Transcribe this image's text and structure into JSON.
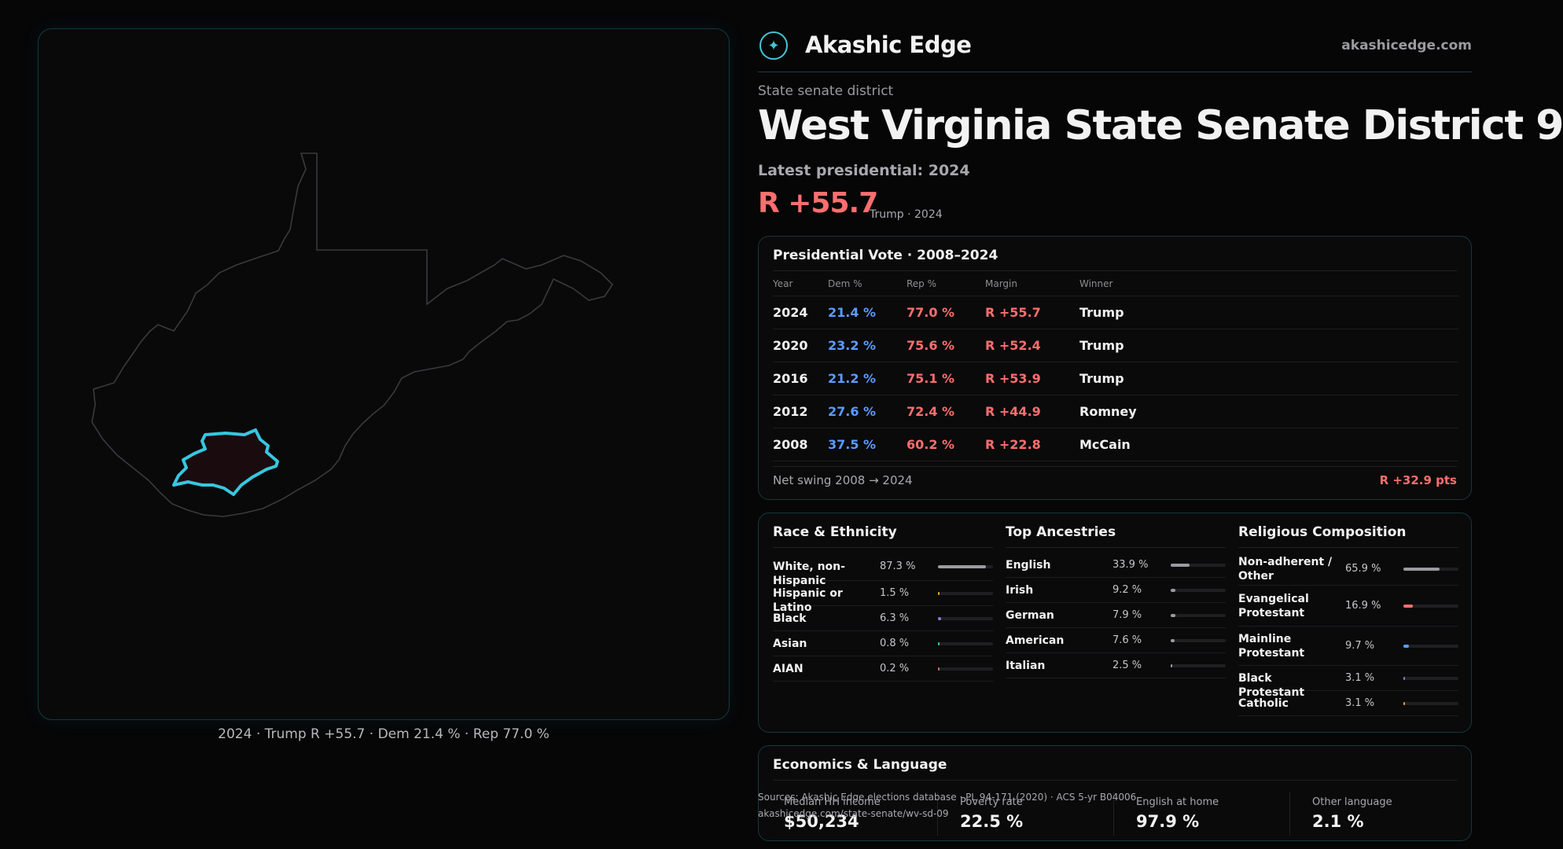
{
  "brand": {
    "name": "Akashic Edge",
    "url": "akashicedge.com"
  },
  "district": {
    "kind": "State senate district",
    "title": "West Virginia State Senate District 9",
    "latest_label": "Latest presidential: 2024",
    "latest_margin": "R +55.7",
    "latest_sub": "Trump · 2024"
  },
  "map_caption": "2024 · Trump R +55.7 · Dem 21.4 % · Rep 77.0 %",
  "colors": {
    "accent": "#36c8e0",
    "dem": "#5b9cff",
    "rep": "#ff6e6e",
    "border": "#17373c"
  },
  "vote": {
    "title": "Presidential Vote · 2008–2024",
    "headers": [
      "Year",
      "Dem %",
      "Rep %",
      "Margin",
      "Winner"
    ],
    "rows": [
      {
        "year": "2024",
        "dem": "21.4 %",
        "rep": "77.0 %",
        "margin": "R +55.7",
        "winner": "Trump"
      },
      {
        "year": "2020",
        "dem": "23.2 %",
        "rep": "75.6 %",
        "margin": "R +52.4",
        "winner": "Trump"
      },
      {
        "year": "2016",
        "dem": "21.2 %",
        "rep": "75.1 %",
        "margin": "R +53.9",
        "winner": "Trump"
      },
      {
        "year": "2012",
        "dem": "27.6 %",
        "rep": "72.4 %",
        "margin": "R +44.9",
        "winner": "Romney"
      },
      {
        "year": "2008",
        "dem": "37.5 %",
        "rep": "60.2 %",
        "margin": "R +22.8",
        "winner": "McCain"
      }
    ],
    "swing_label": "Net swing 2008 → 2024",
    "swing_value": "R +32.9 pts"
  },
  "race": {
    "title": "Race & Ethnicity",
    "items": [
      {
        "label": "White, non-Hispanic",
        "value": "87.3 %",
        "pct": 87.3,
        "color": "#9a9aa0"
      },
      {
        "label": "Hispanic or Latino",
        "value": "1.5 %",
        "pct": 1.5,
        "color": "#e0a030"
      },
      {
        "label": "Black",
        "value": "6.3 %",
        "pct": 6.3,
        "color": "#8a7ae0"
      },
      {
        "label": "Asian",
        "value": "0.8 %",
        "pct": 0.8,
        "color": "#3cc8a0"
      },
      {
        "label": "AIAN",
        "value": "0.2 %",
        "pct": 0.2,
        "color": "#d07050"
      }
    ]
  },
  "ancestry": {
    "title": "Top Ancestries",
    "items": [
      {
        "label": "English",
        "value": "33.9 %",
        "pct": 33.9,
        "color": "#9a9aa0"
      },
      {
        "label": "Irish",
        "value": "9.2 %",
        "pct": 9.2,
        "color": "#9a9aa0"
      },
      {
        "label": "German",
        "value": "7.9 %",
        "pct": 7.9,
        "color": "#9a9aa0"
      },
      {
        "label": "American",
        "value": "7.6 %",
        "pct": 7.6,
        "color": "#9a9aa0"
      },
      {
        "label": "Italian",
        "value": "2.5 %",
        "pct": 2.5,
        "color": "#9a9aa0"
      }
    ]
  },
  "religion": {
    "title": "Religious Composition",
    "items": [
      {
        "label": "Non-adherent / Other",
        "value": "65.9 %",
        "pct": 65.9,
        "color": "#9a9aa0"
      },
      {
        "label": "Evangelical Protestant",
        "value": "16.9 %",
        "pct": 16.9,
        "color": "#ff6e6e"
      },
      {
        "label": "Mainline Protestant",
        "value": "9.7 %",
        "pct": 9.7,
        "color": "#5b9cff"
      },
      {
        "label": "Black Protestant",
        "value": "3.1 %",
        "pct": 3.1,
        "color": "#8a7ae0"
      },
      {
        "label": "Catholic",
        "value": "3.1 %",
        "pct": 3.1,
        "color": "#e0a030"
      }
    ]
  },
  "economics": {
    "title": "Economics & Language",
    "stats": [
      {
        "label": "Median HH income",
        "value": "$50,234"
      },
      {
        "label": "Poverty rate",
        "value": "22.5 %"
      },
      {
        "label": "English at home",
        "value": "97.9 %"
      },
      {
        "label": "Other language",
        "value": "2.1 %"
      }
    ]
  },
  "source": {
    "line1": "Sources: Akashic Edge elections database · PL 94-171 (2020) · ACS 5-yr B04006",
    "line2": "akashicedge.com/state-senate/wv-sd-09"
  }
}
